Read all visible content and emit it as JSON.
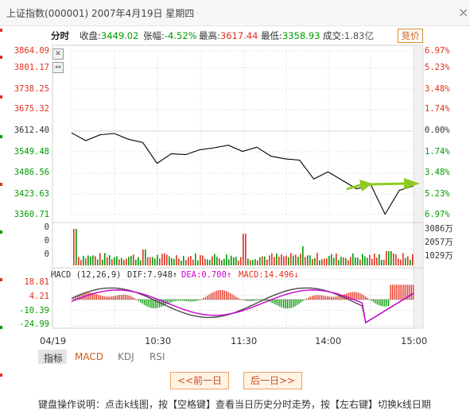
{
  "title": {
    "index_name": "上证指数",
    "index_code": "(000001)",
    "date": "2007年4月19日",
    "weekday": "星期四"
  },
  "close_icon": "×",
  "info_bar": {
    "tab_label": "分时",
    "close_label": "收盘:",
    "close_value": "3449.02",
    "change_label": "张幅:",
    "change_value": "-4.52%",
    "high_label": "最高:",
    "high_value": "3617.44",
    "low_label": "最低:",
    "low_value": "3358.93",
    "volume_label": "成交:",
    "volume_value": "1.83亿",
    "bid_button": "竞价"
  },
  "price_axis": {
    "left": [
      "3864.09",
      "3801.17",
      "3738.25",
      "3675.32",
      "3612.40",
      "3549.48",
      "3486.56",
      "3423.63",
      "3360.71"
    ],
    "right": [
      "6.97%",
      "5.23%",
      "3.48%",
      "1.74%",
      "0.00%",
      "1.74%",
      "3.48%",
      "5.23%",
      "6.97%"
    ]
  },
  "volume_axis": {
    "left": [
      "0",
      "0",
      "0"
    ],
    "right": [
      "3086万",
      "2057万",
      "1029万"
    ]
  },
  "macd_legend": {
    "params": "MACD (12,26,9)",
    "dif": "DIF:7.948↑",
    "dea": "DEA:0.700↑",
    "macd": "MACD:14.496↓"
  },
  "macd_axis": [
    "18.81",
    "4.21",
    "-10.39",
    "-24.99"
  ],
  "time_axis": [
    "04/19",
    "10:30",
    "11:30",
    "14:00",
    "15:00"
  ],
  "indicator_tabs": [
    "指标",
    "MACD",
    "KDJ",
    "RSI"
  ],
  "nav": {
    "prev": "<<前一日",
    "next": "后一日>>"
  },
  "footer": "键盘操作说明：点击k线图，按【空格键】查看当日历史分时走势，按【左右键】切换k线日期",
  "colors": {
    "up": "#e0301e",
    "down": "#009900",
    "grid": "#e4e4e4",
    "price_line": "#000000",
    "arrow": "#8ccc1c",
    "dif": "#4a4a4a",
    "dea": "#cc00cc"
  },
  "chart_data": [
    {
      "type": "line",
      "name": "price",
      "x": [
        "09:30",
        "09:40",
        "09:50",
        "10:00",
        "10:10",
        "10:20",
        "10:30",
        "10:40",
        "10:50",
        "11:00",
        "11:10",
        "11:20",
        "11:30",
        "13:10",
        "13:20",
        "13:30",
        "13:40",
        "13:50",
        "14:00",
        "14:10",
        "14:20",
        "14:30",
        "14:40",
        "14:50",
        "15:00"
      ],
      "values": [
        3612,
        3588,
        3606,
        3610,
        3592,
        3582,
        3518,
        3548,
        3545,
        3560,
        3566,
        3574,
        3555,
        3568,
        3540,
        3532,
        3528,
        3470,
        3492,
        3466,
        3440,
        3452,
        3362,
        3435,
        3449
      ],
      "ylim": [
        3360.71,
        3864.09
      ]
    },
    {
      "type": "bar",
      "name": "volume",
      "unit": "万",
      "ymax": 3086
    },
    {
      "type": "bar",
      "name": "MACD",
      "ylim": [
        -24.99,
        18.81
      ]
    }
  ]
}
